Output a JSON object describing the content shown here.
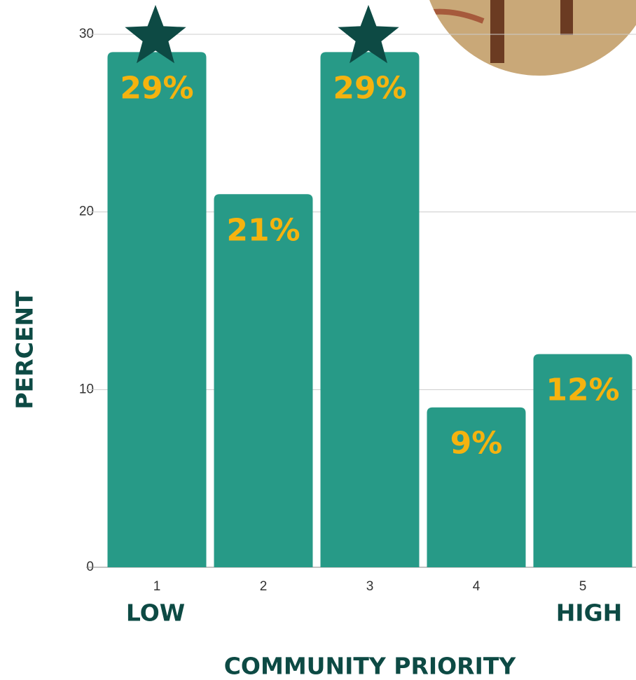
{
  "chart_data": {
    "type": "bar",
    "categories": [
      "1",
      "2",
      "3",
      "4",
      "5"
    ],
    "values": [
      29,
      21,
      29,
      9,
      12
    ],
    "value_labels": [
      "29%",
      "21%",
      "29%",
      "9%",
      "12%"
    ],
    "color": "#279a87",
    "label_color": "#f5b30f",
    "ylim": [
      0,
      30
    ],
    "yticks": [
      0,
      10,
      20,
      30
    ],
    "grid": true,
    "xlabel": "COMMUNITY  PRIORITY",
    "ylabel": "PERCENT",
    "low_label": "LOW",
    "high_label": "HIGH"
  }
}
